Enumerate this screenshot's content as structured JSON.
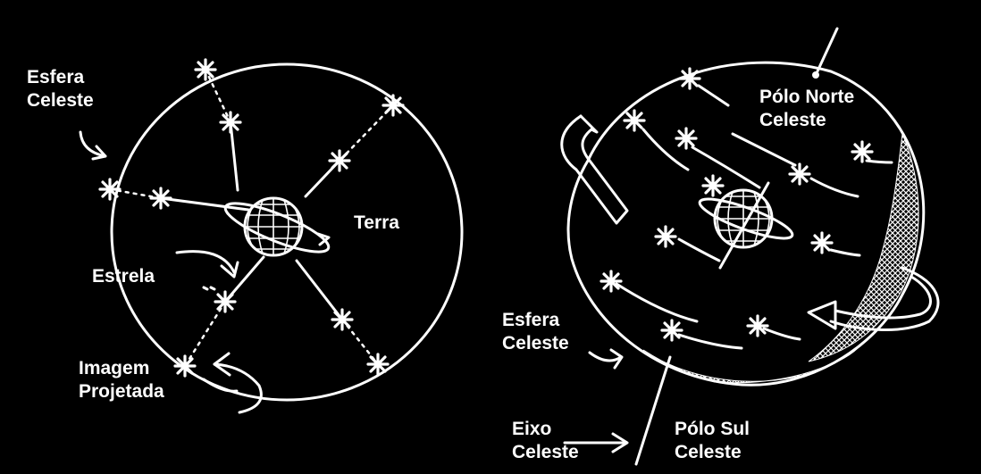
{
  "left_diagram": {
    "sphere_label": [
      "Esfera",
      "Celeste"
    ],
    "earth_label": "Terra",
    "star_label": "Estrela",
    "image_label": [
      "Imagem",
      "Projetada"
    ]
  },
  "right_diagram": {
    "north_pole_label": [
      "Pólo Norte",
      "Celeste"
    ],
    "sphere_label": [
      "Esfera",
      "Celeste"
    ],
    "axis_label": [
      "Eixo",
      "Celeste"
    ],
    "south_pole_label": [
      "Pólo Sul",
      "Celeste"
    ]
  }
}
